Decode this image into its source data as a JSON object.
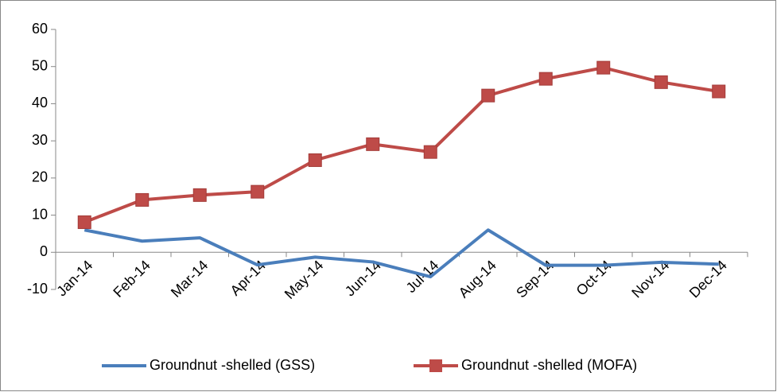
{
  "chart_data": {
    "type": "line",
    "categories": [
      "Jan-14",
      "Feb-14",
      "Mar-14",
      "Apr-14",
      "May-14",
      "Jun-14",
      "Jul-14",
      "Aug-14",
      "Sep-14",
      "Oct-14",
      "Nov-14",
      "Dec-14"
    ],
    "series": [
      {
        "name": "Groundnut -shelled (GSS)",
        "color": "#4a7ebb",
        "marker": "none",
        "values": [
          6,
          3,
          3.9,
          -3.4,
          -1.3,
          -2.6,
          -6.6,
          6,
          -3.5,
          -3.5,
          -2.7,
          -3.2
        ]
      },
      {
        "name": "Groundnut -shelled (MOFA)",
        "color": "#be4b48",
        "marker": "square",
        "values": [
          8.1,
          14.1,
          15.4,
          16.3,
          24.8,
          29.1,
          27,
          42.2,
          46.7,
          49.7,
          45.8,
          43.3
        ]
      }
    ],
    "ylim": [
      -10,
      60
    ],
    "yticks": [
      -10,
      0,
      10,
      20,
      30,
      40,
      50,
      60
    ],
    "legend": "bottom",
    "grid": false
  }
}
